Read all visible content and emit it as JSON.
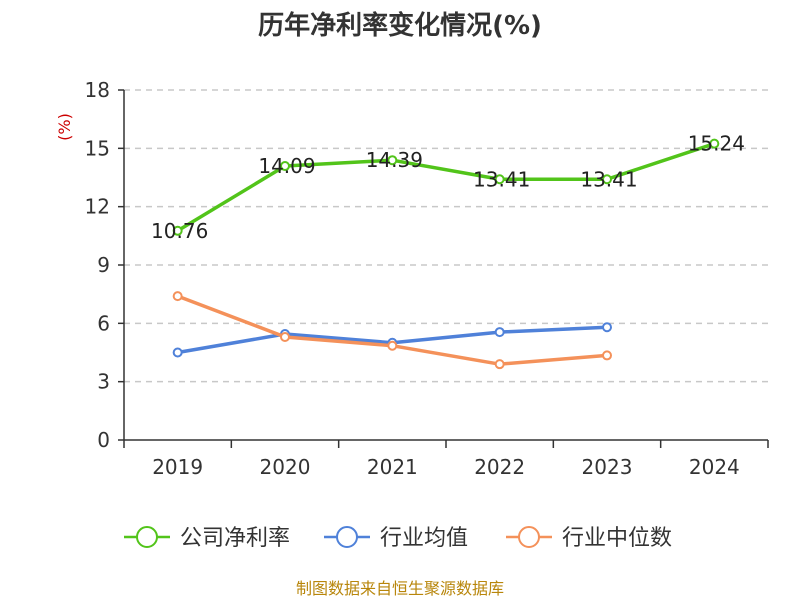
{
  "title": "历年净利率变化情况(%)",
  "unit_label": "(%)",
  "source": "制图数据来自恒生聚源数据库",
  "chart_data": {
    "type": "line",
    "title": "历年净利率变化情况(%)",
    "ylabel": "(%)",
    "xlabel": "",
    "categories": [
      "2019",
      "2020",
      "2021",
      "2022",
      "2023",
      "2024"
    ],
    "ylim": [
      0,
      18
    ],
    "yticks": [
      0,
      3,
      6,
      9,
      12,
      15,
      18
    ],
    "ytick_labels": [
      "0",
      "3",
      "6",
      "9",
      "12",
      "15",
      "18"
    ],
    "grid": true,
    "legend": "bottom",
    "series": [
      {
        "name": "公司净利率",
        "color": "#52c41a",
        "values": [
          10.76,
          14.09,
          14.39,
          13.41,
          13.41,
          15.24
        ],
        "labels": [
          "10.76",
          "14.09",
          "14.39",
          "13.41",
          "13.41",
          "15.24"
        ]
      },
      {
        "name": "行业均值",
        "color": "#4f81d9",
        "values": [
          4.5,
          5.45,
          5.0,
          5.55,
          5.8,
          null
        ]
      },
      {
        "name": "行业中位数",
        "color": "#f4915a",
        "values": [
          7.4,
          5.3,
          4.85,
          3.9,
          4.35,
          null
        ]
      }
    ]
  }
}
